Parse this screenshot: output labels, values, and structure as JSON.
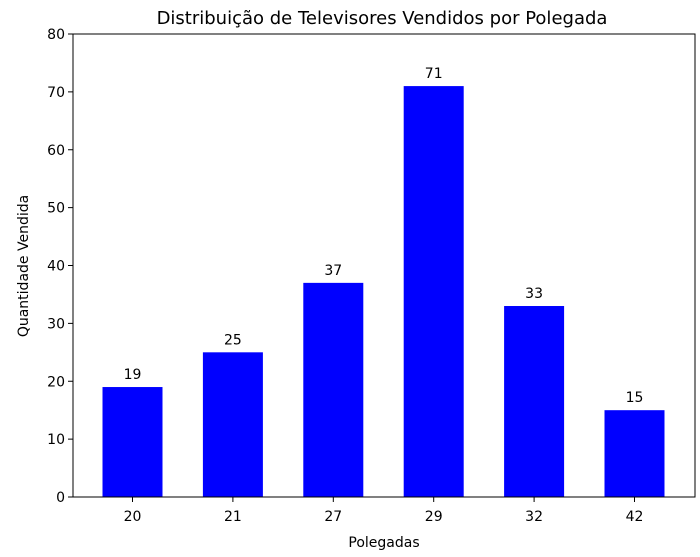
{
  "chart_data": {
    "type": "bar",
    "title": "Distribuição de Televisores Vendidos por Polegada",
    "xlabel": "Polegadas",
    "ylabel": "Quantidade Vendida",
    "categories": [
      "20",
      "21",
      "27",
      "29",
      "32",
      "42"
    ],
    "values": [
      19,
      25,
      37,
      71,
      33,
      15
    ],
    "ylim": [
      0,
      80
    ],
    "yticks": [
      0,
      10,
      20,
      30,
      40,
      50,
      60,
      70,
      80
    ],
    "bar_color": "#0000ff",
    "grid": false,
    "legend": "none"
  }
}
